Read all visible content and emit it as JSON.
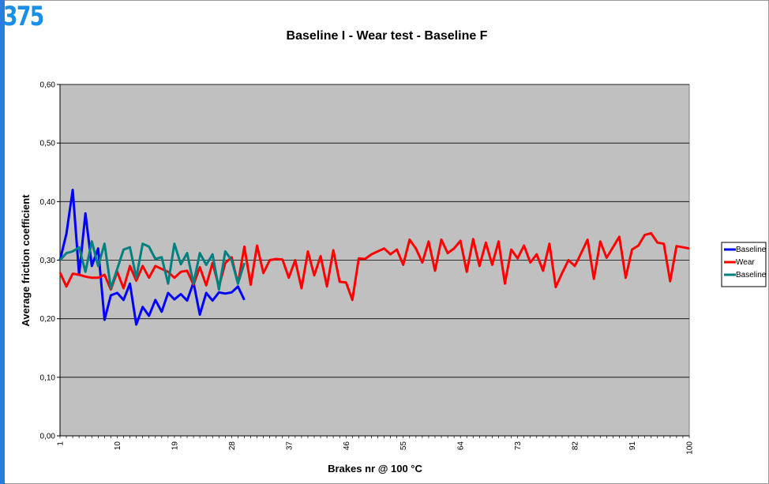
{
  "badge": "375",
  "chart_data": {
    "type": "line",
    "title": "Baseline I - Wear test - Baseline F",
    "xlabel": "Brakes nr @ 100 °C",
    "ylabel": "Average friction coefficient",
    "ylim": [
      0,
      0.6
    ],
    "xlim": [
      1,
      100
    ],
    "yticks": [
      "0,00",
      "0,10",
      "0,20",
      "0,30",
      "0,40",
      "0,50",
      "0,60"
    ],
    "xticks": [
      "1",
      "10",
      "19",
      "28",
      "37",
      "46",
      "55",
      "64",
      "73",
      "82",
      "91",
      "100"
    ],
    "grid": "horizontal",
    "legend": "right",
    "colors": {
      "plot_bg": "#c0c0c0",
      "grid": "#000000"
    },
    "series": [
      {
        "name": "Baseline I",
        "color": "#0000ff",
        "x": [
          1,
          2,
          3,
          4,
          5,
          6,
          7,
          8,
          9,
          10,
          11,
          12,
          13,
          14,
          15,
          16,
          17,
          18,
          19,
          20,
          21,
          22,
          23,
          24,
          25,
          26,
          27,
          28,
          29,
          30
        ],
        "values": [
          0.3,
          0.345,
          0.42,
          0.275,
          0.38,
          0.29,
          0.32,
          0.198,
          0.24,
          0.244,
          0.232,
          0.26,
          0.19,
          0.22,
          0.205,
          0.232,
          0.212,
          0.244,
          0.233,
          0.242,
          0.231,
          0.262,
          0.207,
          0.244,
          0.231,
          0.245,
          0.243,
          0.245,
          0.255,
          0.232
        ]
      },
      {
        "name": "Wear",
        "color": "#ff0000",
        "x": [
          1,
          2,
          3,
          4,
          5,
          6,
          7,
          8,
          9,
          10,
          11,
          12,
          13,
          14,
          15,
          16,
          17,
          18,
          19,
          20,
          21,
          22,
          23,
          24,
          25,
          26,
          27,
          28,
          29,
          30,
          31,
          32,
          33,
          34,
          35,
          36,
          37,
          38,
          39,
          40,
          41,
          42,
          43,
          44,
          45,
          46,
          47,
          48,
          49,
          50,
          51,
          52,
          53,
          54,
          55,
          56,
          57,
          58,
          59,
          60,
          61,
          62,
          63,
          64,
          65,
          66,
          67,
          68,
          69,
          70,
          71,
          72,
          73,
          74,
          75,
          76,
          77,
          78,
          79,
          80,
          81,
          82,
          83,
          84,
          85,
          86,
          87,
          88,
          89,
          90,
          91,
          92,
          93,
          94,
          95,
          96,
          97,
          98,
          99,
          100
        ],
        "values": [
          0.279,
          0.255,
          0.277,
          0.275,
          0.272,
          0.27,
          0.27,
          0.275,
          0.25,
          0.28,
          0.252,
          0.29,
          0.265,
          0.29,
          0.27,
          0.29,
          0.285,
          0.28,
          0.27,
          0.28,
          0.282,
          0.258,
          0.288,
          0.257,
          0.295,
          0.255,
          0.295,
          0.305,
          0.26,
          0.323,
          0.258,
          0.325,
          0.278,
          0.3,
          0.302,
          0.301,
          0.27,
          0.3,
          0.252,
          0.315,
          0.274,
          0.307,
          0.255,
          0.317,
          0.263,
          0.262,
          0.232,
          0.303,
          0.302,
          0.31,
          0.315,
          0.32,
          0.31,
          0.318,
          0.292,
          0.335,
          0.32,
          0.296,
          0.332,
          0.282,
          0.335,
          0.312,
          0.32,
          0.333,
          0.28,
          0.336,
          0.29,
          0.33,
          0.292,
          0.332,
          0.26,
          0.318,
          0.303,
          0.325,
          0.296,
          0.31,
          0.282,
          0.328,
          0.254,
          0.278,
          0.3,
          0.29,
          0.312,
          0.335,
          0.268,
          0.332,
          0.304,
          0.322,
          0.34,
          0.27,
          0.318,
          0.325,
          0.343,
          0.346,
          0.33,
          0.328,
          0.264,
          0.324,
          0.322,
          0.32
        ]
      },
      {
        "name": "Baseline F",
        "color": "#008080",
        "x": [
          1,
          2,
          3,
          4,
          5,
          6,
          7,
          8,
          9,
          10,
          11,
          12,
          13,
          14,
          15,
          16,
          17,
          18,
          19,
          20,
          21,
          22,
          23,
          24,
          25,
          26,
          27,
          28,
          29,
          30
        ],
        "values": [
          0.3,
          0.312,
          0.315,
          0.322,
          0.28,
          0.332,
          0.29,
          0.328,
          0.252,
          0.285,
          0.318,
          0.322,
          0.27,
          0.328,
          0.323,
          0.302,
          0.305,
          0.26,
          0.328,
          0.293,
          0.312,
          0.26,
          0.312,
          0.292,
          0.31,
          0.25,
          0.315,
          0.3,
          0.26,
          0.295
        ]
      }
    ]
  }
}
